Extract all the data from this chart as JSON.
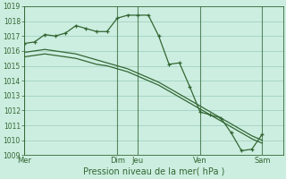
{
  "background_color": "#cceee0",
  "grid_color": "#99ccbb",
  "line_color": "#336633",
  "title": "Pression niveau de la mer( hPa )",
  "ylim": [
    1009,
    1019
  ],
  "yticks": [
    1009,
    1010,
    1011,
    1012,
    1013,
    1014,
    1015,
    1016,
    1017,
    1018,
    1019
  ],
  "x_day_labels": [
    "Mer",
    "Dim",
    "Jeu",
    "Ven",
    "Sam"
  ],
  "x_day_positions": [
    0,
    54,
    66,
    102,
    138
  ],
  "x_vlines": [
    0,
    54,
    66,
    102,
    138
  ],
  "xlim": [
    0,
    150
  ],
  "line1_x": [
    0,
    6,
    12,
    18,
    24,
    30,
    36,
    42,
    48,
    54,
    60,
    66,
    72,
    78,
    84,
    90,
    96,
    102,
    108,
    114,
    120,
    126,
    132,
    138
  ],
  "line1_y": [
    1016.5,
    1016.6,
    1017.1,
    1017.0,
    1017.2,
    1017.7,
    1017.5,
    1017.3,
    1017.3,
    1018.2,
    1018.4,
    1018.4,
    1018.4,
    1017.0,
    1015.1,
    1015.2,
    1013.6,
    1011.9,
    1011.7,
    1011.5,
    1010.5,
    1009.3,
    1009.4,
    1010.4
  ],
  "line2_x": [
    0,
    6,
    12,
    18,
    24,
    30,
    36,
    42,
    48,
    54,
    60,
    66,
    72,
    78,
    84,
    90,
    96,
    102,
    108,
    114,
    120,
    126,
    132,
    138
  ],
  "line2_y": [
    1015.9,
    1016.0,
    1016.1,
    1016.0,
    1015.9,
    1015.8,
    1015.6,
    1015.4,
    1015.2,
    1015.0,
    1014.8,
    1014.5,
    1014.2,
    1013.9,
    1013.5,
    1013.1,
    1012.7,
    1012.3,
    1011.9,
    1011.5,
    1011.1,
    1010.7,
    1010.3,
    1010.0
  ],
  "line3_x": [
    0,
    6,
    12,
    18,
    24,
    30,
    36,
    42,
    48,
    54,
    60,
    66,
    72,
    78,
    84,
    90,
    96,
    102,
    108,
    114,
    120,
    126,
    132,
    138
  ],
  "line3_y": [
    1015.6,
    1015.7,
    1015.8,
    1015.7,
    1015.6,
    1015.5,
    1015.3,
    1015.1,
    1015.0,
    1014.8,
    1014.6,
    1014.3,
    1014.0,
    1013.7,
    1013.3,
    1012.9,
    1012.5,
    1012.1,
    1011.7,
    1011.3,
    1010.9,
    1010.5,
    1010.1,
    1009.8
  ]
}
